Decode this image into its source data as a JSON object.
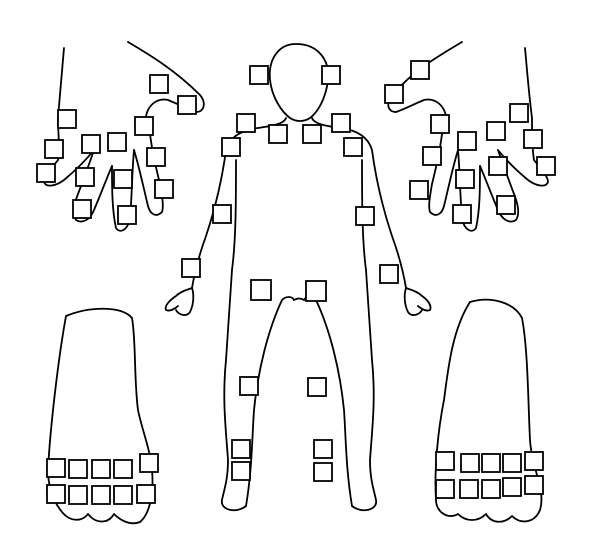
{
  "diagram": {
    "stroke_color": "#000000",
    "background_color": "#ffffff",
    "regions": [
      {
        "name": "left-hand",
        "boxes": 17
      },
      {
        "name": "right-hand",
        "boxes": 16
      },
      {
        "name": "body",
        "boxes": 22
      },
      {
        "name": "left-foot",
        "boxes": 11
      },
      {
        "name": "right-foot",
        "boxes": 11
      }
    ]
  }
}
